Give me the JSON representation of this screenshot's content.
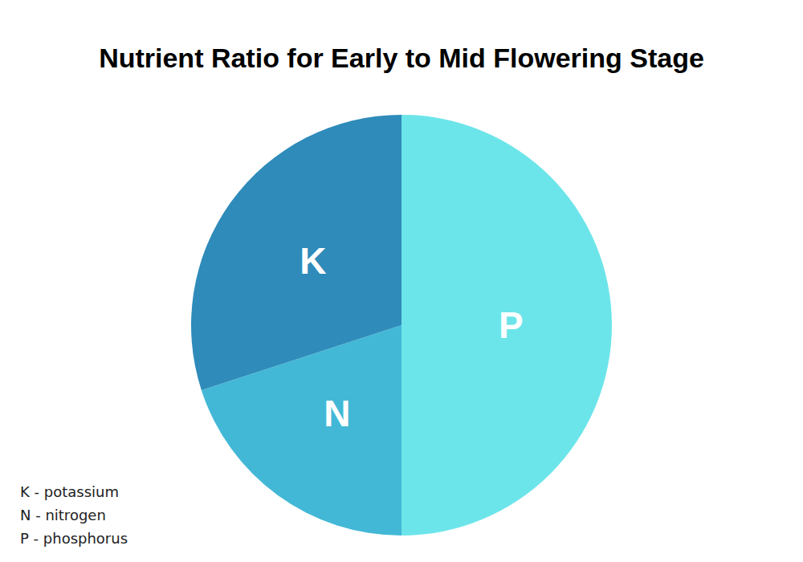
{
  "chart_data": {
    "type": "pie",
    "title": "Nutrient Ratio for Early to Mid Flowering Stage",
    "categories": [
      "P",
      "N",
      "K"
    ],
    "values": [
      50,
      20,
      30
    ],
    "colors": [
      "#6ce5ea",
      "#43b8d6",
      "#2e8bba"
    ],
    "annotations": [
      "K - potassium",
      "N - nitrogen",
      "P - phosphorus"
    ]
  }
}
